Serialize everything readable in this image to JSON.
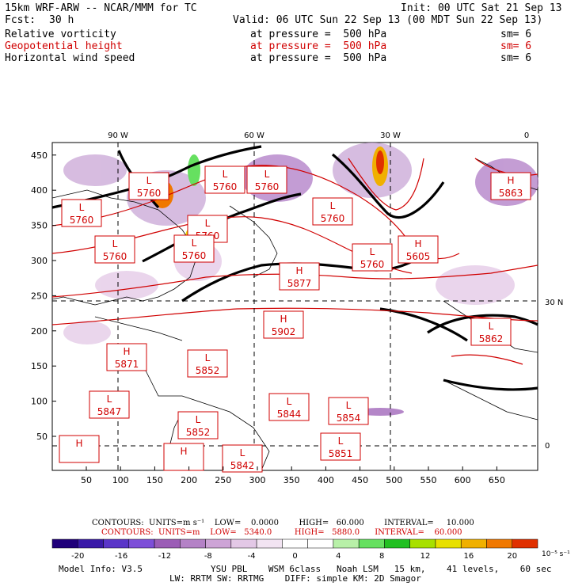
{
  "header": {
    "model": "15km WRF-ARW -- NCAR/MMM for TC",
    "init": "Init: 00 UTC Sat 21 Sep 13",
    "fcst_label": "Fcst:",
    "fcst_value": "30 h",
    "valid": "Valid: 06 UTC Sun 22 Sep 13 (00 MDT Sun 22 Sep 13)",
    "fields": [
      {
        "name": "Relative vorticity",
        "level": "at pressure =  500 hPa",
        "sm": "sm= 6",
        "color": "#000000"
      },
      {
        "name": "Geopotential height",
        "level": "at pressure =  500 hPa",
        "sm": "sm= 6",
        "color": "#d00000"
      },
      {
        "name": "Horizontal wind speed",
        "level": "at pressure =  500 hPa",
        "sm": "sm= 6",
        "color": "#000000"
      }
    ]
  },
  "axes": {
    "x_ticks": [
      "50",
      "100",
      "150",
      "200",
      "250",
      "300",
      "350",
      "400",
      "450",
      "500",
      "550",
      "600",
      "650"
    ],
    "y_ticks": [
      "50",
      "100",
      "150",
      "200",
      "250",
      "300",
      "350",
      "400",
      "450"
    ],
    "lon_labels": [
      "90 W",
      "60 W",
      "30 W",
      "0"
    ],
    "lat_labels": [
      "30 N",
      "0"
    ]
  },
  "centers": [
    {
      "type": "L",
      "value": "5760"
    },
    {
      "type": "L",
      "value": "5760"
    },
    {
      "type": "L",
      "value": "5760"
    },
    {
      "type": "L",
      "value": "5760"
    },
    {
      "type": "L",
      "value": "5760"
    },
    {
      "type": "L",
      "value": "5760"
    },
    {
      "type": "L",
      "value": "5760"
    },
    {
      "type": "L",
      "value": "5760"
    },
    {
      "type": "L",
      "value": "5760"
    },
    {
      "type": "H",
      "value": "5605"
    },
    {
      "type": "H",
      "value": "5863"
    },
    {
      "type": "H",
      "value": "5877"
    },
    {
      "type": "H",
      "value": "5902"
    },
    {
      "type": "L",
      "value": "5862"
    },
    {
      "type": "H",
      "value": "5871"
    },
    {
      "type": "L",
      "value": "5852"
    },
    {
      "type": "L",
      "value": "5847"
    },
    {
      "type": "L",
      "value": "5844"
    },
    {
      "type": "L",
      "value": "5854"
    },
    {
      "type": "L",
      "value": "5852"
    },
    {
      "type": "H",
      "value": ""
    },
    {
      "type": "H",
      "value": ""
    },
    {
      "type": "L",
      "value": "5842"
    },
    {
      "type": "L",
      "value": "5851"
    }
  ],
  "contours": {
    "line1": "CONTOURS:  UNITS=m s⁻¹    LOW=    0.0000        HIGH=   60.000        INTERVAL=     10.000",
    "line2": "CONTOURS:  UNITS=m    LOW=   5340.0         HIGH=   5880.0      INTERVAL=    60.000",
    "line1_color": "#000000",
    "line2_color": "#d00000"
  },
  "colorbar": {
    "labels": [
      "-20",
      "-16",
      "-12",
      "-8",
      "-4",
      "0",
      "4",
      "8",
      "12",
      "16",
      "20"
    ],
    "units": "10⁻⁵ s⁻¹",
    "colors": [
      "#20007a",
      "#3a1aa8",
      "#5a35c8",
      "#7d4fd8",
      "#9b5db6",
      "#b482c6",
      "#cda4d6",
      "#e3c8e6",
      "#f2e4f2",
      "#ffffff",
      "#ffffff",
      "#b8f0a8",
      "#66e060",
      "#22c022",
      "#a8e000",
      "#e8e000",
      "#f0b000",
      "#f07800",
      "#e03000"
    ]
  },
  "footer": {
    "model_info": "Model Info: V3.5",
    "line1": "YSU PBL    WSM 6class   Noah LSM   15 km,    41 levels,    60 sec",
    "line2": "LW: RRTM SW: RRTMG    DIFF: simple KM: 2D Smagor"
  }
}
